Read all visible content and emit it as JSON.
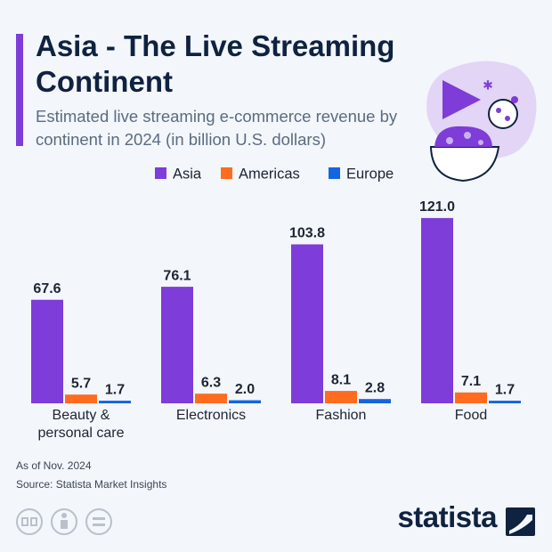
{
  "chart_data": {
    "type": "bar",
    "title": "Asia - The Live Streaming Continent",
    "subtitle": "Estimated live streaming e-commerce revenue by continent in 2024 (in billion U.S. dollars)",
    "categories": [
      "Beauty & personal care",
      "Electronics",
      "Fashion",
      "Food"
    ],
    "series": [
      {
        "name": "Asia",
        "color": "#7e3cd8",
        "values": [
          67.6,
          76.1,
          103.8,
          121.0
        ],
        "value_labels": [
          "67.6",
          "76.1",
          "103.8",
          "121.0"
        ]
      },
      {
        "name": "Americas",
        "color": "#ff6b1f",
        "values": [
          5.7,
          6.3,
          8.1,
          7.1
        ],
        "value_labels": [
          "5.7",
          "6.3",
          "8.1",
          "7.1"
        ]
      },
      {
        "name": "Europe",
        "color": "#1565e0",
        "values": [
          1.7,
          2.0,
          2.8,
          1.7
        ],
        "value_labels": [
          "1.7",
          "2.0",
          "2.8",
          "1.7"
        ]
      }
    ],
    "notes": [
      "As of Nov. 2024",
      "Source: Statista Market Insights"
    ],
    "logo": "statista"
  }
}
